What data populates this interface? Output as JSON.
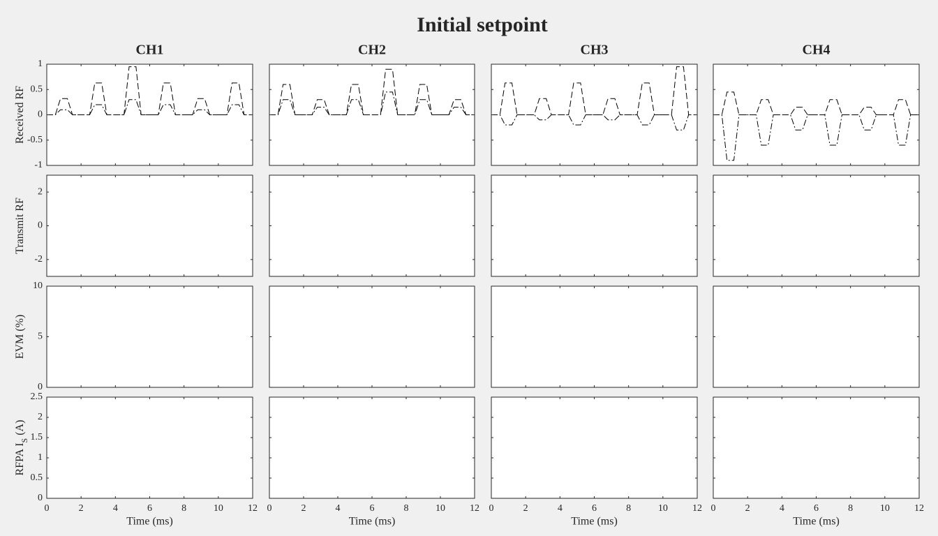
{
  "title": "Initial setpoint",
  "chart_data": [
    {
      "type": "line",
      "title": "CH1",
      "ylabel": "Received RF",
      "xlim": [
        0,
        12
      ],
      "xticks": [
        0,
        2,
        4,
        6,
        8,
        10,
        12
      ],
      "ylim": [
        -1,
        1
      ],
      "yticks": [
        -1,
        -0.5,
        0,
        0.5,
        1
      ],
      "x": [
        0,
        0.5,
        0.8,
        1.2,
        1.5,
        2.5,
        2.8,
        3.2,
        3.5,
        4.5,
        4.8,
        5.2,
        5.5,
        6.5,
        6.8,
        7.2,
        7.5,
        8.5,
        8.8,
        9.2,
        9.5,
        10.5,
        10.8,
        11.2,
        11.5,
        12
      ],
      "series": [
        {
          "color": "#000000",
          "linestyle": "--",
          "values": [
            0,
            0,
            0.32,
            0.32,
            0,
            0,
            0.63,
            0.63,
            0,
            0,
            0.95,
            0.95,
            0,
            0,
            0.63,
            0.63,
            0,
            0,
            0.32,
            0.32,
            0,
            0,
            0.63,
            0.63,
            0,
            0
          ]
        },
        {
          "color": "#000000",
          "linestyle": "-.",
          "values": [
            0,
            0,
            0.1,
            0.1,
            0,
            0,
            0.2,
            0.2,
            0,
            0,
            0.3,
            0.3,
            0,
            0,
            0.2,
            0.2,
            0,
            0,
            0.1,
            0.1,
            0,
            0,
            0.2,
            0.2,
            0,
            0
          ]
        }
      ]
    },
    {
      "type": "line",
      "title": "CH2",
      "xlim": [
        0,
        12
      ],
      "xticks": [
        0,
        2,
        4,
        6,
        8,
        10,
        12
      ],
      "ylim": [
        -1,
        1
      ],
      "yticks": [
        -1,
        -0.5,
        0,
        0.5,
        1
      ],
      "x": [
        0,
        0.5,
        0.8,
        1.2,
        1.5,
        2.5,
        2.8,
        3.2,
        3.5,
        4.5,
        4.8,
        5.2,
        5.5,
        6.5,
        6.8,
        7.2,
        7.5,
        8.5,
        8.8,
        9.2,
        9.5,
        10.5,
        10.8,
        11.2,
        11.5,
        12
      ],
      "series": [
        {
          "color": "#000000",
          "linestyle": "--",
          "values": [
            0,
            0,
            0.6,
            0.6,
            0,
            0,
            0.3,
            0.3,
            0,
            0,
            0.6,
            0.6,
            0,
            0,
            0.9,
            0.9,
            0,
            0,
            0.6,
            0.6,
            0,
            0,
            0.3,
            0.3,
            0,
            0
          ]
        },
        {
          "color": "#000000",
          "linestyle": "-.",
          "values": [
            0,
            0,
            0.3,
            0.3,
            0,
            0,
            0.15,
            0.15,
            0,
            0,
            0.3,
            0.3,
            0,
            0,
            0.45,
            0.45,
            0,
            0,
            0.3,
            0.3,
            0,
            0,
            0.15,
            0.15,
            0,
            0
          ]
        }
      ]
    },
    {
      "type": "line",
      "title": "CH3",
      "xlim": [
        0,
        12
      ],
      "xticks": [
        0,
        2,
        4,
        6,
        8,
        10,
        12
      ],
      "ylim": [
        -1,
        1
      ],
      "yticks": [
        -1,
        -0.5,
        0,
        0.5,
        1
      ],
      "x": [
        0,
        0.5,
        0.8,
        1.2,
        1.5,
        2.5,
        2.8,
        3.2,
        3.5,
        4.5,
        4.8,
        5.2,
        5.5,
        6.5,
        6.8,
        7.2,
        7.5,
        8.5,
        8.8,
        9.2,
        9.5,
        10.5,
        10.8,
        11.2,
        11.5,
        12
      ],
      "series": [
        {
          "color": "#000000",
          "linestyle": "--",
          "values": [
            0,
            0,
            0.63,
            0.63,
            0,
            0,
            0.32,
            0.32,
            0,
            0,
            0.63,
            0.63,
            0,
            0,
            0.32,
            0.32,
            0,
            0,
            0.63,
            0.63,
            0,
            0,
            0.95,
            0.95,
            0,
            0
          ]
        },
        {
          "color": "#000000",
          "linestyle": "-.",
          "values": [
            0,
            0,
            -0.2,
            -0.2,
            0,
            0,
            -0.1,
            -0.1,
            0,
            0,
            -0.2,
            -0.2,
            0,
            0,
            -0.1,
            -0.1,
            0,
            0,
            -0.2,
            -0.2,
            0,
            0,
            -0.3,
            -0.3,
            0,
            0
          ]
        }
      ]
    },
    {
      "type": "line",
      "title": "CH4",
      "xlim": [
        0,
        12
      ],
      "xticks": [
        0,
        2,
        4,
        6,
        8,
        10,
        12
      ],
      "ylim": [
        -1,
        1
      ],
      "yticks": [
        -1,
        -0.5,
        0,
        0.5,
        1
      ],
      "x": [
        0,
        0.5,
        0.8,
        1.2,
        1.5,
        2.5,
        2.8,
        3.2,
        3.5,
        4.5,
        4.8,
        5.2,
        5.5,
        6.5,
        6.8,
        7.2,
        7.5,
        8.5,
        8.8,
        9.2,
        9.5,
        10.5,
        10.8,
        11.2,
        11.5,
        12
      ],
      "series": [
        {
          "color": "#000000",
          "linestyle": "--",
          "values": [
            0,
            0,
            0.45,
            0.45,
            0,
            0,
            0.3,
            0.3,
            0,
            0,
            0.15,
            0.15,
            0,
            0,
            0.3,
            0.3,
            0,
            0,
            0.15,
            0.15,
            0,
            0,
            0.3,
            0.3,
            0,
            0
          ]
        },
        {
          "color": "#000000",
          "linestyle": "-.",
          "values": [
            0,
            0,
            -0.9,
            -0.9,
            0,
            0,
            -0.6,
            -0.6,
            0,
            0,
            -0.3,
            -0.3,
            0,
            0,
            -0.6,
            -0.6,
            0,
            0,
            -0.3,
            -0.3,
            0,
            0,
            -0.6,
            -0.6,
            0,
            0
          ]
        }
      ]
    },
    {
      "type": "line",
      "ylabel": "Transmit RF",
      "xlim": [
        0,
        12
      ],
      "xticks": [
        0,
        2,
        4,
        6,
        8,
        10,
        12
      ],
      "ylim": [
        -3,
        3
      ],
      "yticks": [
        -2,
        0,
        2
      ]
    },
    {
      "type": "line",
      "xlim": [
        0,
        12
      ],
      "xticks": [
        0,
        2,
        4,
        6,
        8,
        10,
        12
      ],
      "ylim": [
        -3,
        3
      ],
      "yticks": [
        -2,
        0,
        2
      ]
    },
    {
      "type": "line",
      "xlim": [
        0,
        12
      ],
      "xticks": [
        0,
        2,
        4,
        6,
        8,
        10,
        12
      ],
      "ylim": [
        -3,
        3
      ],
      "yticks": [
        -2,
        0,
        2
      ]
    },
    {
      "type": "line",
      "xlim": [
        0,
        12
      ],
      "xticks": [
        0,
        2,
        4,
        6,
        8,
        10,
        12
      ],
      "ylim": [
        -3,
        3
      ],
      "yticks": [
        -2,
        0,
        2
      ]
    },
    {
      "type": "line",
      "ylabel": "EVM (%)",
      "xlim": [
        0,
        12
      ],
      "xticks": [
        0,
        2,
        4,
        6,
        8,
        10,
        12
      ],
      "ylim": [
        0,
        10
      ],
      "yticks": [
        0,
        5,
        10
      ]
    },
    {
      "type": "line",
      "xlim": [
        0,
        12
      ],
      "xticks": [
        0,
        2,
        4,
        6,
        8,
        10,
        12
      ],
      "ylim": [
        0,
        10
      ],
      "yticks": [
        0,
        5,
        10
      ]
    },
    {
      "type": "line",
      "xlim": [
        0,
        12
      ],
      "xticks": [
        0,
        2,
        4,
        6,
        8,
        10,
        12
      ],
      "ylim": [
        0,
        10
      ],
      "yticks": [
        0,
        5,
        10
      ]
    },
    {
      "type": "line",
      "xlim": [
        0,
        12
      ],
      "xticks": [
        0,
        2,
        4,
        6,
        8,
        10,
        12
      ],
      "ylim": [
        0,
        10
      ],
      "yticks": [
        0,
        5,
        10
      ]
    },
    {
      "type": "line",
      "ylabel": "RFPA I",
      "ylabel_sub": "S",
      "ylabel_unit": "(A)",
      "xlabel": "Time (ms)",
      "xlim": [
        0,
        12
      ],
      "xticks": [
        0,
        2,
        4,
        6,
        8,
        10,
        12
      ],
      "ylim": [
        0,
        2.5
      ],
      "yticks": [
        0,
        0.5,
        1,
        1.5,
        2,
        2.5
      ]
    },
    {
      "type": "line",
      "xlabel": "Time (ms)",
      "xlim": [
        0,
        12
      ],
      "xticks": [
        0,
        2,
        4,
        6,
        8,
        10,
        12
      ],
      "ylim": [
        0,
        2.5
      ],
      "yticks": [
        0,
        0.5,
        1,
        1.5,
        2,
        2.5
      ]
    },
    {
      "type": "line",
      "xlabel": "Time (ms)",
      "xlim": [
        0,
        12
      ],
      "xticks": [
        0,
        2,
        4,
        6,
        8,
        10,
        12
      ],
      "ylim": [
        0,
        2.5
      ],
      "yticks": [
        0,
        0.5,
        1,
        1.5,
        2,
        2.5
      ]
    },
    {
      "type": "line",
      "xlabel": "Time (ms)",
      "xlim": [
        0,
        12
      ],
      "xticks": [
        0,
        2,
        4,
        6,
        8,
        10,
        12
      ],
      "ylim": [
        0,
        2.5
      ],
      "yticks": [
        0,
        0.5,
        1,
        1.5,
        2,
        2.5
      ]
    }
  ]
}
